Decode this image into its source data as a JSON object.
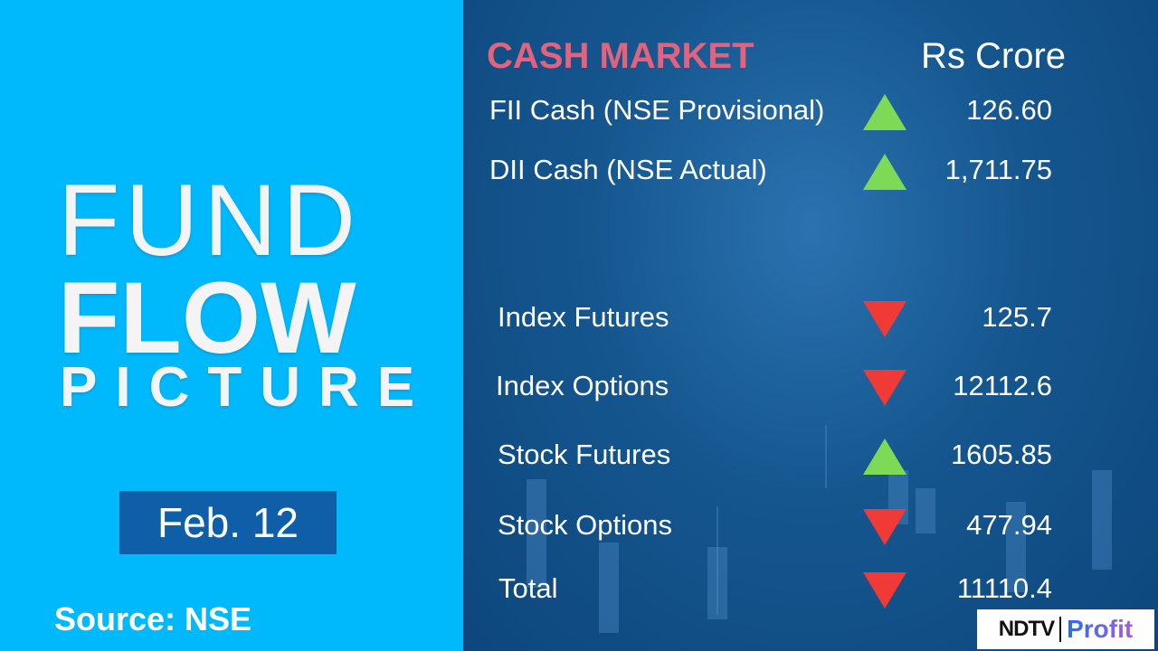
{
  "left": {
    "title_line1": "FUND",
    "title_line2": "FLOW",
    "title_line3": "PICTURE",
    "date": "Feb. 12",
    "source": "Source: NSE"
  },
  "right": {
    "section_title": "CASH MARKET",
    "unit": "Rs Crore",
    "rows": [
      {
        "label": "FII Cash (NSE Provisional)",
        "direction": "up",
        "value": "126.60"
      },
      {
        "label": "DII Cash (NSE Actual)",
        "direction": "up",
        "value": "1,711.75"
      },
      {
        "label": "Index Futures",
        "direction": "down",
        "value": "125.7"
      },
      {
        "label": "Index Options",
        "direction": "down",
        "value": "12112.6"
      },
      {
        "label": "Stock Futures",
        "direction": "up",
        "value": "1605.85"
      },
      {
        "label": "Stock Options",
        "direction": "down",
        "value": "477.94"
      },
      {
        "label": "Total",
        "direction": "down",
        "value": "11110.4"
      }
    ]
  },
  "logo": {
    "part1": "NDTV",
    "part2": "Profit"
  },
  "colors": {
    "left_bg": "#00b9fd",
    "right_bg": "#15568f",
    "title": "#e4637c",
    "up": "#7ed957",
    "down": "#f03a35"
  }
}
